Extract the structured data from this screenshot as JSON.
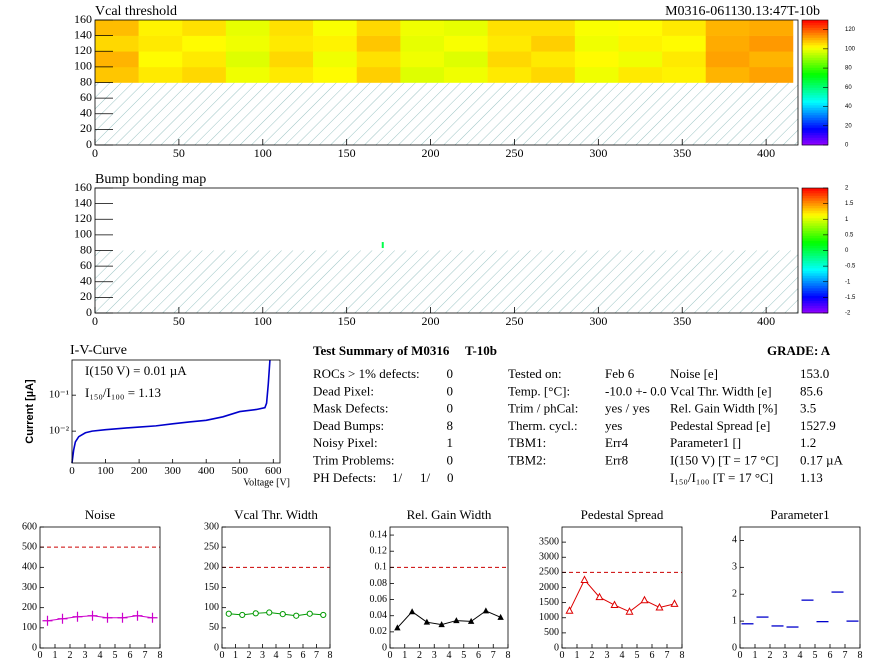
{
  "chart_data": [
    {
      "type": "heatmap",
      "title": "Vcal threshold",
      "label": "M0316-061130.13:47T-10b",
      "xbins": [
        0,
        26,
        52,
        78,
        104,
        130,
        156,
        182,
        208,
        234,
        260,
        286,
        312,
        338,
        364,
        390,
        416
      ],
      "ybins": [
        80,
        100,
        120,
        140,
        160
      ],
      "z": [
        [
          108,
          104,
          106,
          100,
          104,
          102,
          107,
          98,
          100,
          104,
          106,
          100,
          104,
          103,
          110,
          112
        ],
        [
          110,
          102,
          104,
          98,
          106,
          100,
          105,
          100,
          98,
          106,
          104,
          102,
          100,
          104,
          112,
          110
        ],
        [
          106,
          104,
          102,
          100,
          104,
          103,
          108,
          99,
          101,
          104,
          107,
          100,
          103,
          102,
          111,
          113
        ],
        [
          109,
          103,
          105,
          99,
          105,
          101,
          106,
          100,
          99,
          105,
          105,
          101,
          102,
          104,
          110,
          111
        ]
      ],
      "xlim": [
        0,
        419
      ],
      "xticks": [
        0,
        50,
        100,
        150,
        200,
        250,
        300,
        350,
        400
      ],
      "ylim": [
        0,
        160
      ],
      "yticks": [
        0,
        20,
        40,
        60,
        80,
        100,
        120,
        140,
        160
      ],
      "zlim": [
        0,
        130
      ],
      "zticks": [
        0,
        20,
        40,
        60,
        80,
        100,
        120
      ]
    },
    {
      "type": "heatmap",
      "title": "Bump bonding map",
      "points": {
        "x": [
          171.5
        ],
        "y": [
          87
        ],
        "z": [
          0
        ]
      },
      "xlim": [
        0,
        419
      ],
      "xticks": [
        0,
        50,
        100,
        150,
        200,
        250,
        300,
        350,
        400
      ],
      "ylim": [
        0,
        160
      ],
      "yticks": [
        0,
        20,
        40,
        60,
        80,
        100,
        120,
        140,
        160
      ],
      "zlim": [
        -2,
        2
      ],
      "zticks": [
        -2,
        -1.5,
        -1,
        -0.5,
        0,
        0.5,
        1,
        1.5,
        2
      ]
    },
    {
      "type": "line",
      "title": "I-V-Curve",
      "x_label": "Voltage [V]",
      "y_label": "Current [µA]",
      "log_y": true,
      "annotations": [
        "I(150 V) = 0.01 µA",
        "I₁₅₀/I₁₀₀ =  1.13"
      ],
      "x": [
        0,
        5,
        10,
        20,
        40,
        60,
        100,
        150,
        200,
        250,
        300,
        350,
        400,
        450,
        500,
        550,
        575,
        580,
        585,
        590
      ],
      "values": [
        0.0013,
        0.003,
        0.005,
        0.007,
        0.009,
        0.01,
        0.011,
        0.012,
        0.013,
        0.014,
        0.016,
        0.018,
        0.02,
        0.025,
        0.035,
        0.04,
        0.045,
        0.06,
        0.2,
        0.95
      ],
      "color": "#0000cc",
      "marker": "none",
      "xlim": [
        0,
        620
      ],
      "xticks": [
        0,
        100,
        200,
        300,
        400,
        500,
        600
      ],
      "ylim": [
        0.0013,
        0.95
      ],
      "yticks": [
        {
          "value": 0.1,
          "label": "10⁻¹"
        },
        {
          "value": 0.01,
          "label": "10⁻²"
        }
      ]
    },
    {
      "type": "line",
      "title": "Noise",
      "x": [
        0.5,
        1.5,
        2.5,
        3.5,
        4.5,
        5.5,
        6.5,
        7.5
      ],
      "values": [
        135,
        145,
        155,
        160,
        150,
        150,
        160,
        150
      ],
      "color": "#cc00cc",
      "marker": "plus",
      "threshold": 500,
      "xlim": [
        0,
        8
      ],
      "xticks": [
        0,
        1,
        2,
        3,
        4,
        5,
        6,
        7,
        8
      ],
      "ylim": [
        0,
        600
      ],
      "yticks": [
        0,
        100,
        200,
        300,
        400,
        500,
        600
      ]
    },
    {
      "type": "line",
      "title": "Vcal Thr. Width",
      "x": [
        0.5,
        1.5,
        2.5,
        3.5,
        4.5,
        5.5,
        6.5,
        7.5
      ],
      "values": [
        85,
        82,
        86,
        88,
        84,
        80,
        85,
        82
      ],
      "color": "#009900",
      "marker": "circle",
      "threshold": 200,
      "xlim": [
        0,
        8
      ],
      "xticks": [
        0,
        1,
        2,
        3,
        4,
        5,
        6,
        7,
        8
      ],
      "ylim": [
        0,
        300
      ],
      "yticks": [
        0,
        50,
        100,
        150,
        200,
        250,
        300
      ]
    },
    {
      "type": "line",
      "title": "Rel. Gain Width",
      "x": [
        0.5,
        1.5,
        2.5,
        3.5,
        4.5,
        5.5,
        6.5,
        7.5
      ],
      "values": [
        0.025,
        0.045,
        0.032,
        0.029,
        0.034,
        0.033,
        0.046,
        0.038
      ],
      "color": "#000000",
      "marker": "triangle",
      "threshold": 0.1,
      "xlim": [
        0,
        8
      ],
      "xticks": [
        0,
        1,
        2,
        3,
        4,
        5,
        6,
        7,
        8
      ],
      "ylim": [
        0,
        0.15
      ],
      "yticks": [
        0,
        0.02,
        0.04,
        0.06,
        0.08,
        0.1,
        0.12,
        0.14
      ]
    },
    {
      "type": "line",
      "title": "Pedestal Spread",
      "x": [
        0.5,
        1.5,
        2.5,
        3.5,
        4.5,
        5.5,
        6.5,
        7.5
      ],
      "values": [
        1230,
        2250,
        1680,
        1420,
        1200,
        1580,
        1340,
        1460
      ],
      "color": "#dd0000",
      "marker": "triangle-open",
      "threshold": 2500,
      "xlim": [
        0,
        8
      ],
      "xticks": [
        0,
        1,
        2,
        3,
        4,
        5,
        6,
        7,
        8
      ],
      "ylim": [
        0,
        4000
      ],
      "yticks": [
        0,
        500,
        1000,
        1500,
        2000,
        2500,
        3000,
        3500
      ]
    },
    {
      "type": "scatter",
      "title": "Parameter1",
      "x": [
        0.5,
        1.5,
        2.5,
        3.5,
        4.5,
        5.5,
        6.5,
        7.5
      ],
      "values": [
        0.9,
        1.15,
        0.82,
        0.78,
        1.78,
        0.98,
        2.08,
        1.0
      ],
      "color": "#0000cc",
      "marker": "hline",
      "xlim": [
        0,
        8
      ],
      "xticks": [
        0,
        1,
        2,
        3,
        4,
        5,
        6,
        7,
        8
      ],
      "ylim": [
        0,
        4.5
      ],
      "yticks": [
        0,
        1,
        2,
        3,
        4
      ]
    }
  ],
  "summary": {
    "title": "Test Summary of M0316",
    "module_type": "T-10b",
    "grade": "GRADE:  A",
    "defects": [
      [
        "ROCs > 1% defects:",
        "0"
      ],
      [
        "Dead Pixel:",
        "0"
      ],
      [
        "Mask Defects:",
        "0"
      ],
      [
        "Dead Bumps:",
        "8"
      ],
      [
        "Noisy Pixel:",
        "1"
      ],
      [
        "Trim Problems:",
        "0"
      ]
    ],
    "ph_defects": {
      "label": "PH Defects:",
      "values": [
        "1/",
        "1/",
        "0"
      ]
    },
    "conditions": [
      [
        "Tested on:",
        "Feb 6"
      ],
      [
        "Temp. [°C]:",
        "-10.0 +- 0.0"
      ],
      [
        "Trim / phCal:",
        "yes / yes"
      ],
      [
        "Therm. cycl.:",
        "yes"
      ],
      [
        "TBM1:",
        "Err4"
      ],
      [
        "TBM2:",
        "Err8"
      ]
    ],
    "results": [
      [
        "Noise [e]",
        "153.0"
      ],
      [
        "Vcal Thr. Width [e]",
        "85.6"
      ],
      [
        "Rel. Gain Width [%]",
        "3.5"
      ],
      [
        "Pedestal Spread [e]",
        "1527.9"
      ],
      [
        "Parameter1 []",
        "1.2"
      ],
      [
        "I(150 V) [T = 17 °C]",
        "0.17 µA"
      ],
      [
        "I₁₅₀/I₁₀₀  [T = 17 °C]",
        "1.13"
      ]
    ]
  }
}
